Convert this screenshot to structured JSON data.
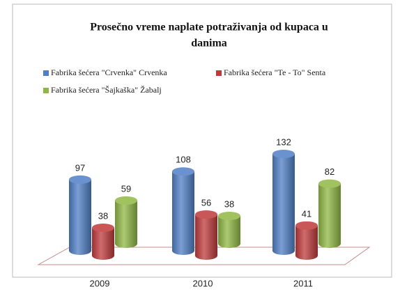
{
  "chart_data": {
    "type": "bar3d",
    "title": [
      "Prosečno vreme naplate potraživanja od kupaca u",
      "danima"
    ],
    "categories": [
      "2009",
      "2010",
      "2011"
    ],
    "series": [
      {
        "name": "Fabrika šećera \"Crvenka\" Crvenka",
        "color": "#4f7fc6",
        "values": [
          97,
          108,
          132
        ]
      },
      {
        "name": "Fabrika šećera \"Te - To\" Senta",
        "color": "#c0393b",
        "values": [
          38,
          56,
          41
        ]
      },
      {
        "name": "Fabrika šećera \"Šajkaška\" Žabalj",
        "color": "#8fb843",
        "values": [
          59,
          38,
          82
        ]
      }
    ]
  }
}
